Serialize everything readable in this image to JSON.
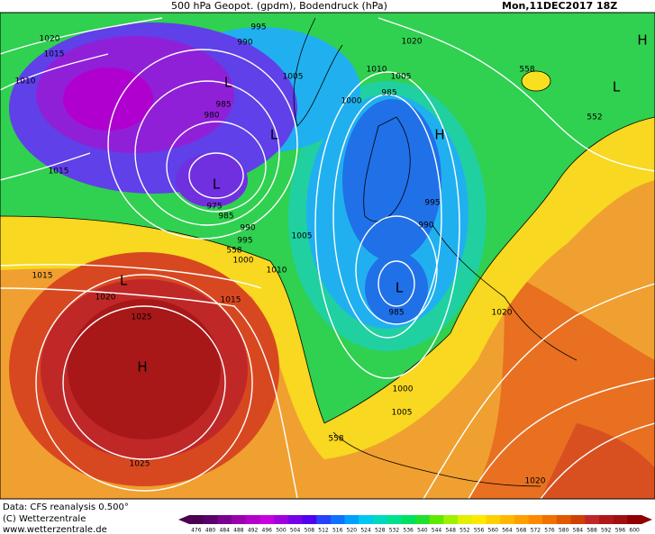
{
  "header": {
    "title": "500 hPa Geopot. (gpdm), Bodendruck (hPa)",
    "date": "Mon,11DEC2017 18Z"
  },
  "footer": {
    "source": "Data: CFS reanalysis 0.500°",
    "copyright": "(C) Wetterzentrale",
    "url": "www.wetterzentrale.de"
  },
  "map": {
    "labels": [
      "1020",
      "1015",
      "1010",
      "995",
      "990",
      "1020",
      "558",
      "H",
      "L",
      "552",
      "1005",
      "1010",
      "1005",
      "985",
      "1000",
      "L",
      "985",
      "980",
      "L",
      "H",
      "1015",
      "L",
      "975",
      "985",
      "990",
      "995",
      "558",
      "1000",
      "1005",
      "1010",
      "995",
      "990",
      "1015",
      "L",
      "1020",
      "1015",
      "L",
      "985",
      "1025",
      "1020",
      "H",
      "1000",
      "1005",
      "558",
      "1025",
      "1020"
    ]
  },
  "colorbar": {
    "labels": [
      476,
      480,
      484,
      488,
      492,
      496,
      500,
      504,
      508,
      512,
      516,
      520,
      524,
      528,
      532,
      536,
      540,
      544,
      548,
      552,
      556,
      560,
      564,
      568,
      572,
      576,
      580,
      584,
      588,
      592,
      596,
      600
    ],
    "colors": [
      "#4b0050",
      "#5a006a",
      "#7a0090",
      "#9a00b0",
      "#b400c8",
      "#c800e0",
      "#a000e0",
      "#7800e8",
      "#5000f0",
      "#2840f8",
      "#1070ff",
      "#00a0ff",
      "#00c8f0",
      "#00d8c0",
      "#00e090",
      "#00e060",
      "#20e030",
      "#60e800",
      "#a0f000",
      "#e0f000",
      "#ffe800",
      "#ffd000",
      "#ffb800",
      "#ffa000",
      "#ff8800",
      "#f07000",
      "#e05800",
      "#d04000",
      "#c02828",
      "#b01818",
      "#a01010",
      "#900000"
    ]
  }
}
